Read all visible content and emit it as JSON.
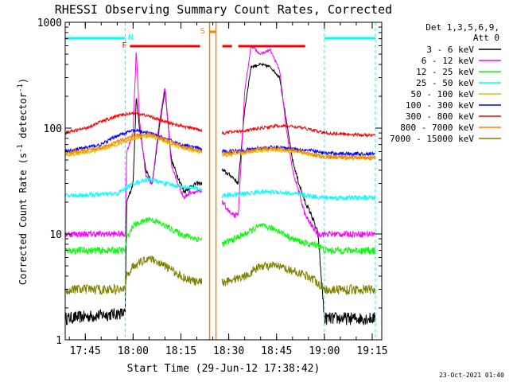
{
  "chart_data": {
    "type": "line",
    "title": "RHESSI Observing Summary Count Rates, Corrected",
    "xlabel": "Start Time (29-Jun-12 17:38:42)",
    "ylabel": "Corrected Count Rate (s",
    "ylabel_exp1": "-1",
    "ylabel_mid": " detector",
    "ylabel_exp2": "-1",
    "ylabel_end": ")",
    "y_scale": "log",
    "ylim": [
      1,
      1000
    ],
    "xlim": [
      "17:38:42",
      "19:18:00"
    ],
    "x_ticks": [
      "17:45",
      "18:00",
      "18:15",
      "18:30",
      "18:45",
      "19:00",
      "19:15"
    ],
    "y_ticks": [
      "1",
      "10",
      "100",
      "1000"
    ],
    "legend_header": [
      "Det 1,3,5,6,9,",
      "Att 0"
    ],
    "legend_placement": "right",
    "timestamp": "23-Oct-2021 01:40",
    "annotations": {
      "flags": [
        {
          "label": "F",
          "color": "#ff0000",
          "segments": [
            [
              "17:59:00",
              "18:21:00"
            ],
            [
              "18:28:00",
              "18:31:00"
            ],
            [
              "18:33:00",
              "18:54:00"
            ]
          ]
        },
        {
          "label": "N",
          "color": "#00ffff",
          "segments": [
            [
              "17:38:42",
              "17:57:30"
            ],
            [
              "19:00:00",
              "19:16:00"
            ]
          ]
        },
        {
          "label": "S",
          "color": "#ff8000",
          "segments": [
            [
              "18:24:00",
              "18:26:00"
            ]
          ]
        }
      ],
      "night_lines": [
        "17:57:30",
        "19:00:00",
        "19:16:00"
      ],
      "gap_lines": [
        "18:22:00",
        "18:27:30"
      ],
      "saa_lines": [
        "18:24:00",
        "18:26:00"
      ]
    },
    "series": [
      {
        "name": "3 - 6 keV",
        "color": "#000000",
        "x": [
          "17:38:42",
          "17:57:30",
          "17:58:00",
          "18:00",
          "18:01",
          "18:02",
          "18:04",
          "18:06",
          "18:08",
          "18:10",
          "18:12",
          "18:14",
          "18:16",
          "18:18",
          "18:20",
          "18:22",
          "18:28",
          "18:31",
          "18:33",
          "18:35",
          "18:37",
          "18:40",
          "18:43",
          "18:46",
          "18:48",
          "18:50",
          "18:52",
          "18:54",
          "18:56",
          "18:58",
          "19:00",
          "19:16"
        ],
        "values": [
          1.6,
          1.8,
          20,
          30,
          200,
          100,
          40,
          30,
          90,
          230,
          50,
          35,
          25,
          28,
          30,
          30,
          40,
          35,
          30,
          150,
          380,
          400,
          380,
          300,
          120,
          50,
          30,
          20,
          15,
          10,
          1.6,
          1.6
        ]
      },
      {
        "name": "6 - 12 keV",
        "color": "#ff00ff",
        "x": [
          "17:38:42",
          "17:57:30",
          "17:58:00",
          "18:00",
          "18:01",
          "18:02",
          "18:04",
          "18:06",
          "18:08",
          "18:10",
          "18:12",
          "18:14",
          "18:16",
          "18:18",
          "18:20",
          "18:22",
          "18:28",
          "18:31",
          "18:33",
          "18:35",
          "18:37",
          "18:40",
          "18:43",
          "18:46",
          "18:48",
          "18:50",
          "18:52",
          "18:54",
          "18:56",
          "18:58",
          "19:00",
          "19:16"
        ],
        "values": [
          10,
          10,
          60,
          90,
          550,
          120,
          35,
          30,
          100,
          250,
          45,
          30,
          22,
          25,
          25,
          25,
          20,
          15,
          15,
          220,
          600,
          500,
          550,
          350,
          100,
          40,
          25,
          15,
          12,
          10,
          10,
          10
        ]
      },
      {
        "name": "12 - 25 keV",
        "color": "#00ff00",
        "x": [
          "17:38:42",
          "17:57:30",
          "17:58:00",
          "18:00",
          "18:05",
          "18:10",
          "18:15",
          "18:20",
          "18:22",
          "18:28",
          "18:35",
          "18:40",
          "18:45",
          "18:50",
          "18:55",
          "18:58",
          "19:00",
          "19:16"
        ],
        "values": [
          7,
          7,
          9,
          12,
          14,
          12,
          10,
          9,
          9,
          8,
          10,
          12,
          11,
          9,
          8,
          8,
          7,
          7
        ]
      },
      {
        "name": "25 - 50 keV",
        "color": "#00ffff",
        "x": [
          "17:38:42",
          "17:55",
          "18:00",
          "18:05",
          "18:10",
          "18:15",
          "18:20",
          "18:22",
          "18:28",
          "18:35",
          "18:40",
          "18:45",
          "18:50",
          "18:55",
          "19:00",
          "19:16"
        ],
        "values": [
          23,
          24,
          30,
          33,
          30,
          28,
          27,
          26,
          23,
          24,
          25,
          25,
          24,
          23,
          22,
          22
        ]
      },
      {
        "name": "50 - 100 keV",
        "color": "#e0c000",
        "x": [
          "17:38:42",
          "17:50",
          "18:00",
          "18:05",
          "18:10",
          "18:15",
          "18:20",
          "18:22",
          "18:28",
          "18:35",
          "18:40",
          "18:45",
          "18:50",
          "18:55",
          "19:00",
          "19:16"
        ],
        "values": [
          55,
          62,
          80,
          85,
          75,
          65,
          60,
          58,
          55,
          58,
          62,
          62,
          60,
          57,
          54,
          53
        ]
      },
      {
        "name": "100 - 300 keV",
        "color": "#0000ff",
        "x": [
          "17:38:42",
          "17:50",
          "17:55",
          "18:00",
          "18:05",
          "18:10",
          "18:15",
          "18:20",
          "18:22",
          "18:28",
          "18:35",
          "18:40",
          "18:45",
          "18:50",
          "18:55",
          "19:00",
          "19:16"
        ],
        "values": [
          60,
          70,
          85,
          95,
          90,
          80,
          70,
          65,
          62,
          60,
          62,
          65,
          66,
          64,
          62,
          58,
          57
        ]
      },
      {
        "name": "300 - 800 keV",
        "color": "#ff0000",
        "x": [
          "17:38:42",
          "17:45",
          "17:50",
          "17:55",
          "18:00",
          "18:05",
          "18:10",
          "18:15",
          "18:20",
          "18:22",
          "18:28",
          "18:35",
          "18:40",
          "18:45",
          "18:50",
          "18:55",
          "19:00",
          "19:16"
        ],
        "values": [
          90,
          100,
          115,
          130,
          140,
          130,
          115,
          105,
          98,
          95,
          90,
          95,
          100,
          105,
          104,
          98,
          90,
          85
        ]
      },
      {
        "name": "800 - 7000 keV",
        "color": "#ff8000",
        "x": [
          "17:38:42",
          "17:50",
          "18:00",
          "18:05",
          "18:10",
          "18:15",
          "18:20",
          "18:22",
          "18:28",
          "18:35",
          "18:40",
          "18:45",
          "18:50",
          "18:55",
          "19:00",
          "19:16"
        ],
        "values": [
          58,
          65,
          85,
          88,
          78,
          68,
          62,
          60,
          58,
          60,
          64,
          64,
          62,
          58,
          53,
          52
        ]
      },
      {
        "name": "7000 - 15000 keV",
        "color": "#808000",
        "x": [
          "17:38:42",
          "17:57:30",
          "17:58:00",
          "18:00",
          "18:05",
          "18:10",
          "18:15",
          "18:20",
          "18:22",
          "18:28",
          "18:35",
          "18:40",
          "18:45",
          "18:50",
          "18:55",
          "18:58",
          "19:00",
          "19:16"
        ],
        "values": [
          3,
          3,
          4,
          5,
          6,
          5,
          4,
          3.5,
          3.5,
          3.5,
          4,
          5,
          5,
          4.5,
          4,
          3.5,
          3,
          3
        ]
      }
    ]
  }
}
